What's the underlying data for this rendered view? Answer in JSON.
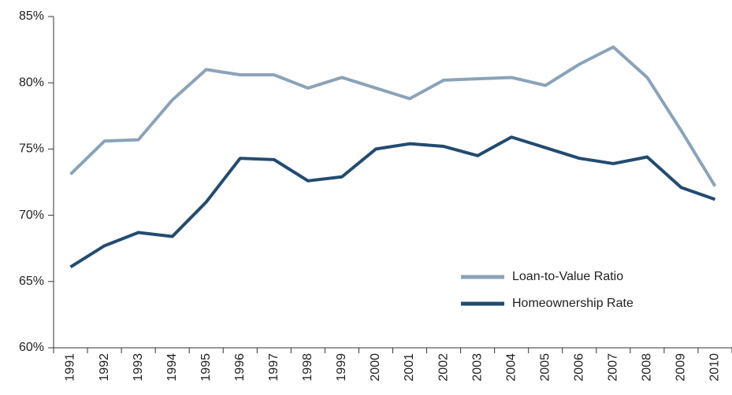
{
  "chart_data": {
    "type": "line",
    "categories": [
      "1991",
      "1992",
      "1993",
      "1994",
      "1995",
      "1996",
      "1997",
      "1998",
      "1999",
      "2000",
      "2001",
      "2002",
      "2003",
      "2004",
      "2005",
      "2006",
      "2007",
      "2008",
      "2009",
      "2010"
    ],
    "series": [
      {
        "name": "Loan-to-Value Ratio",
        "color": "#8aa3b9",
        "values": [
          73.1,
          75.6,
          75.7,
          78.7,
          81.0,
          80.6,
          80.6,
          79.6,
          80.4,
          79.6,
          78.8,
          80.2,
          80.3,
          80.4,
          79.8,
          81.4,
          82.7,
          80.4,
          76.4,
          72.2
        ]
      },
      {
        "name": "Homeownership Rate",
        "color": "#234b6f",
        "values": [
          66.1,
          67.7,
          68.7,
          68.4,
          71.0,
          74.3,
          74.2,
          72.6,
          72.9,
          75.0,
          75.4,
          75.2,
          74.5,
          75.9,
          75.1,
          74.3,
          73.9,
          74.4,
          72.1,
          71.2
        ]
      }
    ],
    "ylim": [
      60,
      85
    ],
    "yticks": [
      {
        "value": 60,
        "label": "60%"
      },
      {
        "value": 65,
        "label": "65%"
      },
      {
        "value": 70,
        "label": "70%"
      },
      {
        "value": 75,
        "label": "75%"
      },
      {
        "value": 80,
        "label": "80%"
      },
      {
        "value": 85,
        "label": "85%"
      }
    ],
    "grid": false,
    "legend": "lower right"
  }
}
